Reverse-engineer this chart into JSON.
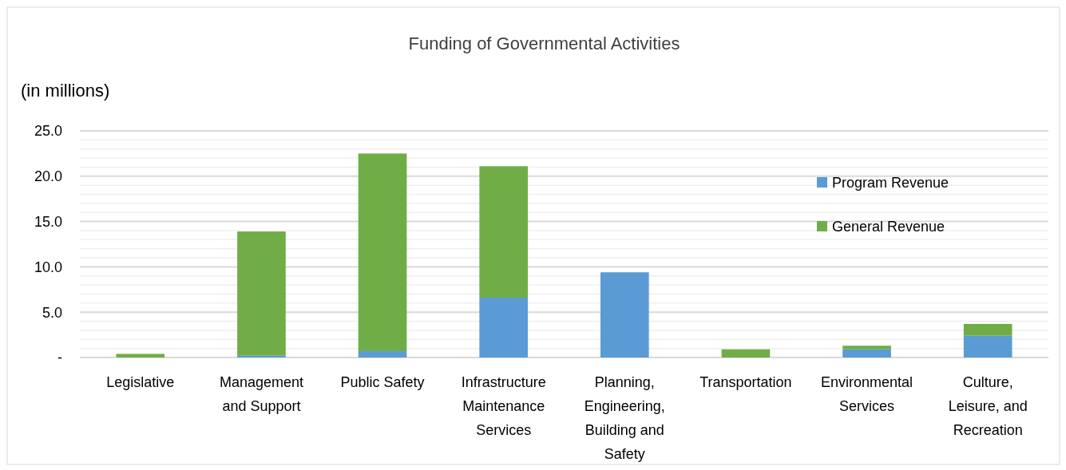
{
  "chart_data": {
    "type": "bar",
    "stacked": true,
    "title": "Funding of Governmental Activities",
    "ylabel": "(in millions)",
    "categories": [
      "Legislative",
      "Management and Support",
      "Public Safety",
      "Infrastructure Maintenance Services",
      "Planning, Engineering, Building and Safety",
      "Transportation",
      "Environmental Services",
      "Culture, Leisure, and Recreation"
    ],
    "series": [
      {
        "name": "Program Revenue",
        "color": "#5b9bd5",
        "values": [
          0,
          0.2,
          0.7,
          6.6,
          9.4,
          0,
          0.9,
          2.4
        ]
      },
      {
        "name": "General Revenue",
        "color": "#70ad47",
        "values": [
          0.4,
          13.7,
          21.8,
          14.5,
          0,
          0.9,
          0.4,
          1.3
        ]
      }
    ],
    "ylim": [
      0,
      25
    ],
    "yticks": [
      {
        "value": 0,
        "label": "-"
      },
      {
        "value": 1,
        "label": null
      },
      {
        "value": 2,
        "label": null
      },
      {
        "value": 3,
        "label": null
      },
      {
        "value": 4,
        "label": null
      },
      {
        "value": 5,
        "label": "5.0"
      },
      {
        "value": 6,
        "label": null
      },
      {
        "value": 7,
        "label": null
      },
      {
        "value": 8,
        "label": null
      },
      {
        "value": 9,
        "label": null
      },
      {
        "value": 10,
        "label": "10.0"
      },
      {
        "value": 11,
        "label": null
      },
      {
        "value": 12,
        "label": null
      },
      {
        "value": 13,
        "label": null
      },
      {
        "value": 14,
        "label": null
      },
      {
        "value": 15,
        "label": "15.0"
      },
      {
        "value": 16,
        "label": null
      },
      {
        "value": 17,
        "label": null
      },
      {
        "value": 18,
        "label": null
      },
      {
        "value": 19,
        "label": null
      },
      {
        "value": 20,
        "label": "20.0"
      },
      {
        "value": 21,
        "label": null
      },
      {
        "value": 22,
        "label": null
      },
      {
        "value": 23,
        "label": null
      },
      {
        "value": 24,
        "label": null
      },
      {
        "value": 25,
        "label": "25.0"
      }
    ],
    "grid": true,
    "legend": "right"
  }
}
